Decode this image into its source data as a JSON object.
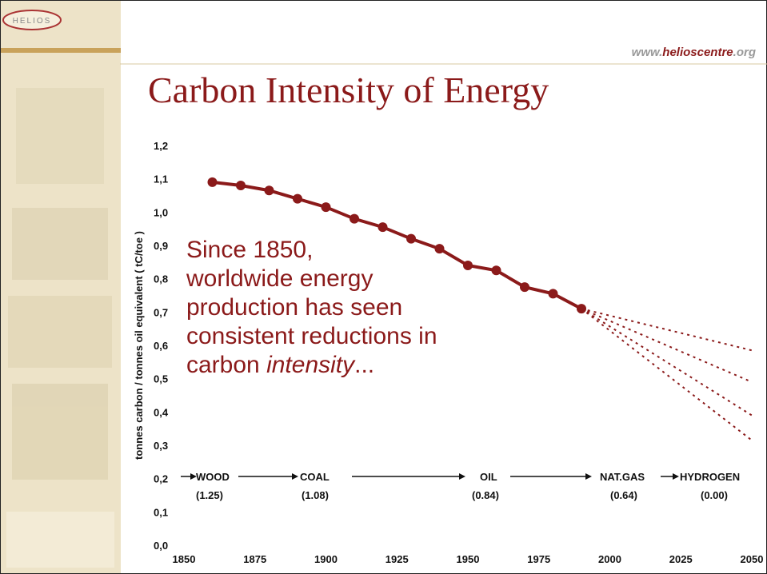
{
  "sidebar": {
    "logo": "HELIOS"
  },
  "url": {
    "prefix": "www.",
    "name": "helioscentre",
    "suffix": ".org"
  },
  "chart_data": {
    "type": "line",
    "title": "Carbon Intensity of Energy",
    "y_label": "tonnes carbon / tonnes oil equivalent ( tC/toe )",
    "x": [
      1860,
      1870,
      1880,
      1890,
      1900,
      1910,
      1920,
      1930,
      1940,
      1950,
      1960,
      1970,
      1980,
      1990
    ],
    "series": [
      {
        "color": "#8b1a1a",
        "values": [
          1.09,
          1.08,
          1.065,
          1.04,
          1.015,
          0.98,
          0.955,
          0.92,
          0.89,
          0.84,
          0.825,
          0.775,
          0.755,
          0.71
        ]
      }
    ],
    "projections": [
      {
        "x": [
          1990,
          2050
        ],
        "values": [
          0.71,
          0.585
        ]
      },
      {
        "x": [
          1990,
          2050
        ],
        "values": [
          0.71,
          0.49
        ]
      },
      {
        "x": [
          1990,
          2050
        ],
        "values": [
          0.71,
          0.39
        ]
      },
      {
        "x": [
          1990,
          2050
        ],
        "values": [
          0.71,
          0.315
        ]
      }
    ],
    "xlim": [
      1850,
      2050
    ],
    "xticks": [
      1850,
      1875,
      1900,
      1925,
      1950,
      1975,
      2000,
      2025,
      2050
    ],
    "ylim": [
      0,
      1.2
    ],
    "yticks": [
      {
        "value": 0,
        "label": "0,0"
      },
      {
        "value": 0.1,
        "label": "0,1"
      },
      {
        "value": 0.2,
        "label": "0,2"
      },
      {
        "value": 0.3,
        "label": "0,3"
      },
      {
        "value": 0.4,
        "label": "0,4"
      },
      {
        "value": 0.5,
        "label": "0,5"
      },
      {
        "value": 0.6,
        "label": "0,6"
      },
      {
        "value": 0.7,
        "label": "0,7"
      },
      {
        "value": 0.8,
        "label": "0,8"
      },
      {
        "value": 0.9,
        "label": "0,9"
      },
      {
        "value": 1.0,
        "label": "1,0"
      },
      {
        "value": 1.1,
        "label": "1,1"
      },
      {
        "value": 1.2,
        "label": "1,2"
      }
    ],
    "annotation": [
      "Since 1850,",
      "worldwide energy",
      "production has seen",
      "consistent reductions in"
    ],
    "annotation_last": [
      "carbon ",
      "intensity",
      "..."
    ],
    "fuels": [
      {
        "name": "WOOD",
        "label": "(1.25)"
      },
      {
        "name": "COAL",
        "label": "(1.08)"
      },
      {
        "name": "OIL",
        "label": "(0.84)"
      },
      {
        "name": "NAT.GAS",
        "label": "(0.64)"
      },
      {
        "name": "HYDROGEN",
        "label": "(0.00)"
      }
    ]
  }
}
